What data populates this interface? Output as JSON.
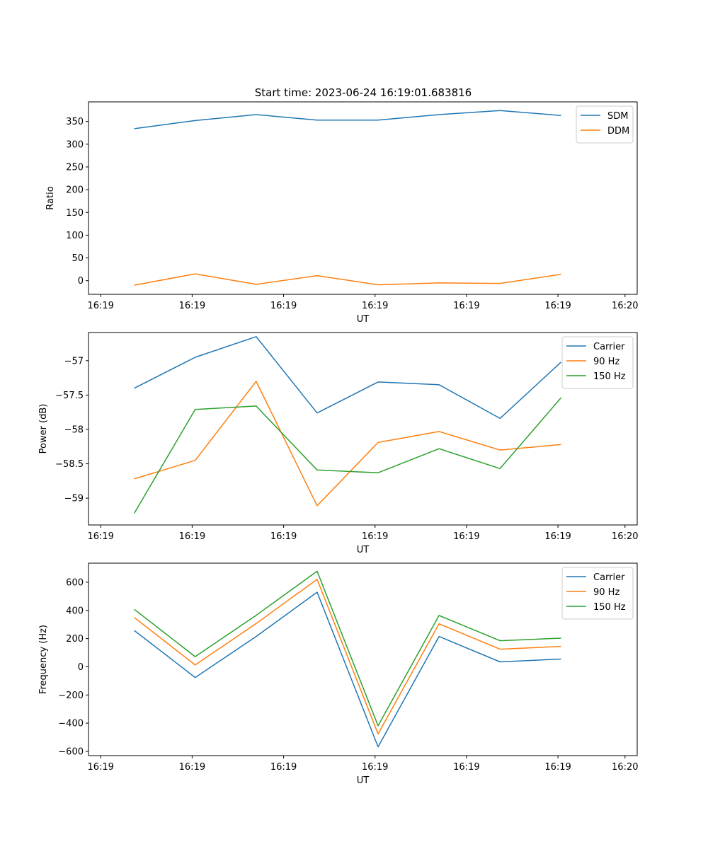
{
  "figure": {
    "title": "Start time: 2023-06-24 16:19:01.683816"
  },
  "chart_data": [
    {
      "type": "line",
      "xlabel": "UT",
      "ylabel": "Ratio",
      "x_ticks": [
        "16:19",
        "16:19",
        "16:19",
        "16:19",
        "16:19",
        "16:19",
        "16:20"
      ],
      "x_values": [
        1,
        2,
        3,
        4,
        5,
        6,
        7,
        8
      ],
      "xlim": [
        0.25,
        9.25
      ],
      "ylim": [
        -30,
        393
      ],
      "y_ticks": [
        0,
        50,
        100,
        150,
        200,
        250,
        300,
        350
      ],
      "legend_position": "top-right",
      "series": [
        {
          "name": "SDM",
          "color": "#1f77b4",
          "values": [
            334,
            352,
            365,
            353,
            353,
            365,
            374,
            363
          ]
        },
        {
          "name": "DDM",
          "color": "#ff7f0e",
          "values": [
            -10,
            15,
            -8,
            11,
            -9,
            -5,
            -6,
            14
          ]
        }
      ]
    },
    {
      "type": "line",
      "xlabel": "UT",
      "ylabel": "Power (dB)",
      "x_ticks": [
        "16:19",
        "16:19",
        "16:19",
        "16:19",
        "16:19",
        "16:19",
        "16:20"
      ],
      "x_values": [
        1,
        2,
        3,
        4,
        5,
        6,
        7,
        8
      ],
      "xlim": [
        0.25,
        9.25
      ],
      "ylim": [
        -59.39,
        -56.59
      ],
      "y_ticks": [
        -59.0,
        -58.5,
        -58.0,
        -57.5,
        -57.0
      ],
      "legend_position": "top-right",
      "series": [
        {
          "name": "Carrier",
          "color": "#1f77b4",
          "values": [
            -57.4,
            -56.95,
            -56.65,
            -57.76,
            -57.31,
            -57.35,
            -57.84,
            -57.02
          ]
        },
        {
          "name": "90 Hz",
          "color": "#ff7f0e",
          "values": [
            -58.72,
            -58.45,
            -57.3,
            -59.11,
            -58.19,
            -58.03,
            -58.3,
            -58.22
          ]
        },
        {
          "name": "150 Hz",
          "color": "#2ca02c",
          "values": [
            -59.22,
            -57.71,
            -57.66,
            -58.59,
            -58.63,
            -58.28,
            -58.57,
            -57.54
          ]
        }
      ]
    },
    {
      "type": "line",
      "xlabel": "UT",
      "ylabel": "Frequency (Hz)",
      "x_ticks": [
        "16:19",
        "16:19",
        "16:19",
        "16:19",
        "16:19",
        "16:19",
        "16:20"
      ],
      "x_values": [
        1,
        2,
        3,
        4,
        5,
        6,
        7,
        8
      ],
      "xlim": [
        0.25,
        9.25
      ],
      "ylim": [
        -630,
        735
      ],
      "y_ticks": [
        -600,
        -400,
        -200,
        0,
        200,
        400,
        600
      ],
      "legend_position": "top-right",
      "series": [
        {
          "name": "Carrier",
          "color": "#1f77b4",
          "values": [
            258,
            -76,
            215,
            529,
            -568,
            215,
            35,
            55
          ]
        },
        {
          "name": "90 Hz",
          "color": "#ff7f0e",
          "values": [
            350,
            13,
            307,
            620,
            -476,
            305,
            125,
            145
          ]
        },
        {
          "name": "150 Hz",
          "color": "#2ca02c",
          "values": [
            408,
            72,
            365,
            678,
            -418,
            364,
            185,
            203
          ]
        }
      ]
    }
  ]
}
